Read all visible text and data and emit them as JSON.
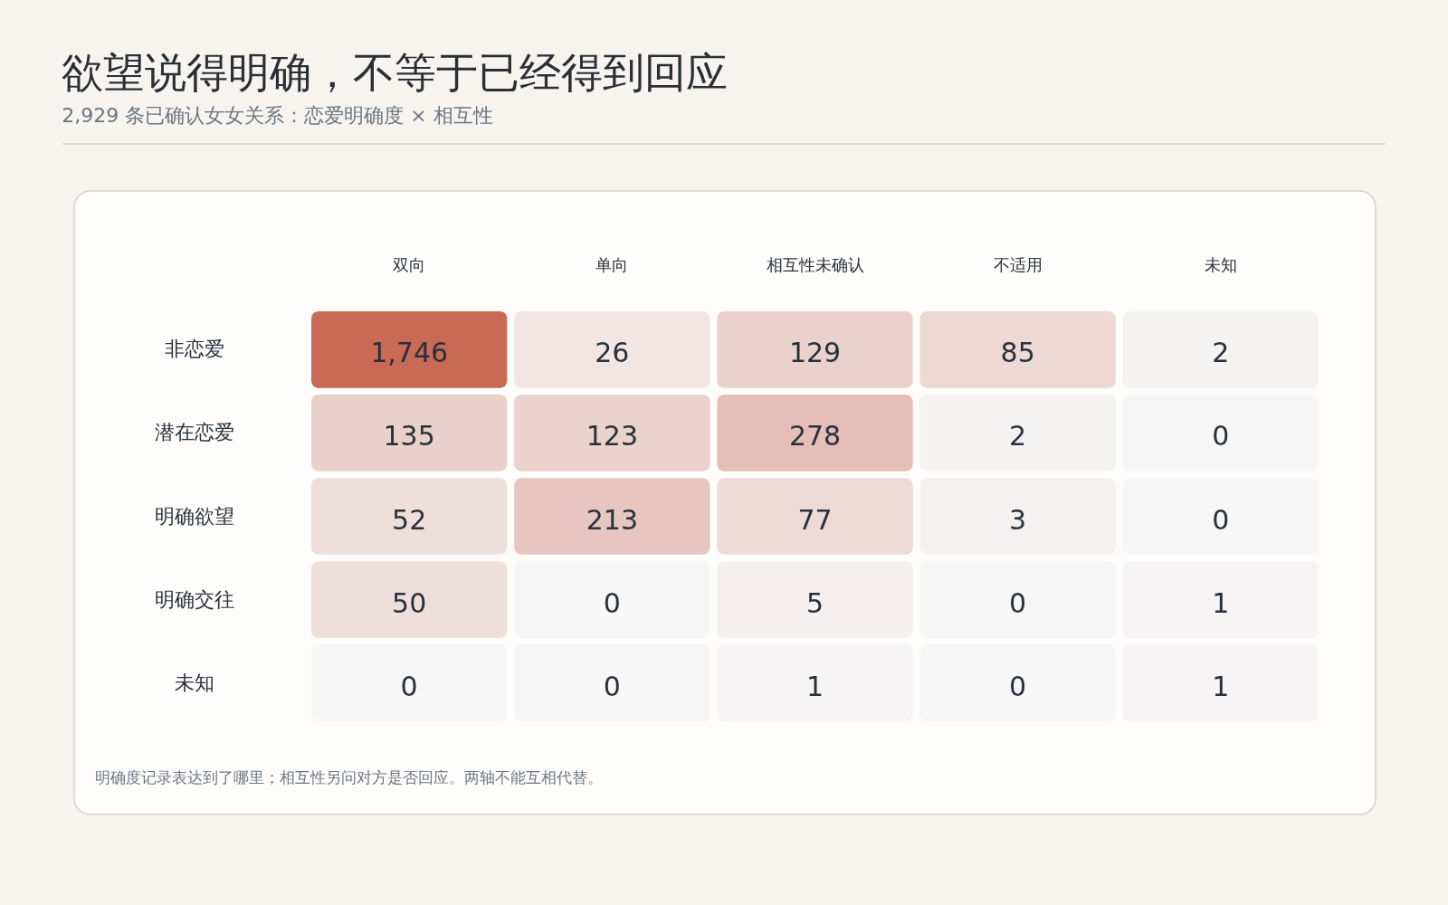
{
  "chart_data": {
    "type": "heatmap",
    "title": "欲望说得明确，不等于已经得到回应",
    "subtitle": "2,929 条已确认女女关系：恋爱明确度 × 相互性",
    "categories": [
      "双向",
      "单向",
      "相互性未确认",
      "不适用",
      "未知"
    ],
    "y_categories": [
      "非恋爱",
      "潜在恋爱",
      "明确欲望",
      "明确交往",
      "未知"
    ],
    "cells": [
      [
        1746,
        26,
        129,
        85,
        2
      ],
      [
        135,
        123,
        278,
        2,
        0
      ],
      [
        52,
        213,
        77,
        3,
        0
      ],
      [
        50,
        0,
        5,
        0,
        1
      ],
      [
        0,
        0,
        1,
        0,
        1
      ]
    ],
    "cell_labels": [
      [
        "1,746",
        "26",
        "129",
        "85",
        "2"
      ],
      [
        "135",
        "123",
        "278",
        "2",
        "0"
      ],
      [
        "52",
        "213",
        "77",
        "3",
        "0"
      ],
      [
        "50",
        "0",
        "5",
        "0",
        "1"
      ],
      [
        "0",
        "0",
        "1",
        "0",
        "1"
      ]
    ],
    "color": "#c96a55",
    "annotations": [
      "明确度记录表达到了哪里；相互性另问对方是否回应。两轴不能互相代替。"
    ]
  }
}
